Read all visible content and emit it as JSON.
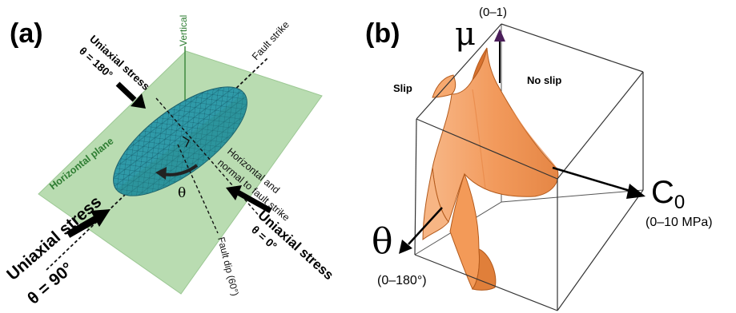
{
  "panel_a": {
    "label": "(a)",
    "vertical": "Vertical",
    "fault_strike": "Fault strike",
    "horizontal_plane": "Horizontal plane",
    "stress_top_label": "Uniaxial stress",
    "stress_top_angle": "θ = 180°",
    "stress_left_label": "Uniaxial stress",
    "stress_left_angle": "θ = 90°",
    "stress_right_label": "Uniaxial stress",
    "stress_right_angle": "θ = 0°",
    "horizontal_normal_line1": "Horizontal and",
    "horizontal_normal_line2": "normal to fault strike",
    "theta": "θ",
    "fault_dip": "Fault dip (60°)",
    "colors": {
      "plane": "#b9dcb1",
      "fault": "#2f9aa8",
      "vertical_line": "#3f8a3f",
      "label_green": "#2e7d32"
    }
  },
  "panel_b": {
    "label": "(b)",
    "mu_symbol": "μ",
    "mu_range": "(0–1)",
    "c0_symbol": "C",
    "c0_subscript": "0",
    "c0_range": "(0–10 MPa)",
    "theta_symbol": "θ",
    "theta_range": "(0–180°)",
    "slip": "Slip",
    "no_slip": "No slip",
    "colors": {
      "surface": "#f4a065",
      "surface_dark": "#c8631e",
      "mu_arrow": "#4b1e5a"
    }
  }
}
